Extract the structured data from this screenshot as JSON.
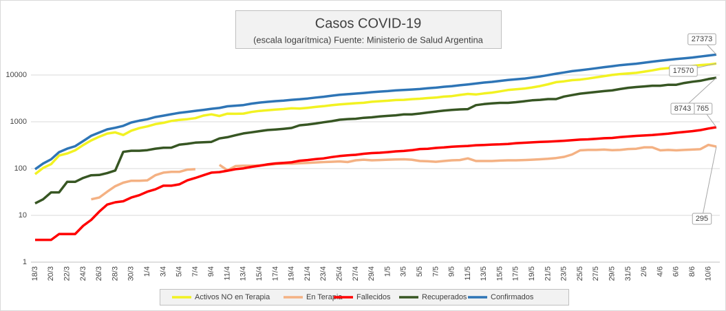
{
  "chart_data": {
    "type": "line",
    "title": "Casos COVID-19",
    "subtitle": "(escala logarítmica) Fuente: Ministerio de Salud Argentina",
    "log_scale": true,
    "grid": true,
    "legend": "bottom",
    "ylim": [
      1,
      100000
    ],
    "yticks": [
      1,
      10,
      100,
      1000,
      10000
    ],
    "categories": [
      "18/3",
      null,
      "20/3",
      null,
      "22/3",
      null,
      "24/3",
      null,
      "26/3",
      null,
      "28/3",
      null,
      "30/3",
      null,
      "1/4",
      null,
      "3/4",
      null,
      "5/4",
      null,
      "7/4",
      null,
      "9/4",
      null,
      "11/4",
      null,
      "13/4",
      null,
      "15/4",
      null,
      "17/4",
      null,
      "19/4",
      null,
      "21/4",
      null,
      "23/4",
      null,
      "25/4",
      null,
      "27/4",
      null,
      "29/4",
      null,
      "1/5",
      null,
      "3/5",
      null,
      "5/5",
      null,
      "7/5",
      null,
      "9/5",
      null,
      "11/5",
      null,
      "13/5",
      null,
      "15/5",
      null,
      "17/5",
      null,
      "19/5",
      null,
      "21/5",
      null,
      "23/5",
      null,
      "25/5",
      null,
      "27/5",
      null,
      "29/5",
      null,
      "31/5",
      null,
      "2/6",
      null,
      "4/6",
      null,
      "6/6",
      null,
      "8/6",
      null,
      "10/6",
      null
    ],
    "series": [
      {
        "name": "Activos NO en Terapia",
        "color": "#f2f222",
        "values": [
          76,
          103,
          124,
          190,
          210,
          245,
          318,
          400,
          480,
          561,
          593,
          522,
          647,
          732,
          797,
          891,
          949,
          1043,
          1098,
          1139,
          1197,
          1358,
          1440,
          1331,
          1492,
          1483,
          1496,
          1623,
          1707,
          1760,
          1819,
          1871,
          1941,
          1914,
          1988,
          2075,
          2156,
          2261,
          2346,
          2422,
          2494,
          2547,
          2676,
          2757,
          2815,
          2915,
          2945,
          3043,
          3113,
          3220,
          3296,
          3455,
          3541,
          3745,
          3946,
          3837,
          4030,
          4197,
          4468,
          4785,
          4944,
          5122,
          5419,
          5804,
          6336,
          7035,
          7319,
          7750,
          7968,
          8389,
          8901,
          9476,
          10031,
          10489,
          10782,
          11124,
          11815,
          12567,
          13517,
          14051,
          15012,
          15191,
          15567,
          16303,
          16750,
          17570
        ]
      },
      {
        "name": "En Terapia",
        "color": "#f4b183",
        "values": [
          null,
          null,
          null,
          null,
          null,
          null,
          null,
          22,
          24,
          32,
          42,
          50,
          55,
          55,
          56,
          72,
          82,
          85,
          85,
          95,
          97,
          null,
          null,
          120,
          92,
          113,
          115,
          115,
          117,
          120,
          125,
          127,
          127,
          130,
          132,
          135,
          138,
          140,
          142,
          138,
          150,
          155,
          150,
          152,
          155,
          157,
          158,
          155,
          145,
          143,
          140,
          145,
          150,
          152,
          165,
          145,
          145,
          145,
          148,
          150,
          150,
          152,
          155,
          158,
          162,
          168,
          178,
          200,
          245,
          250,
          250,
          255,
          248,
          250,
          262,
          265,
          285,
          285,
          245,
          250,
          245,
          250,
          255,
          260,
          320,
          295
        ]
      },
      {
        "name": "Fallecidos",
        "color": "#ff0000",
        "values": [
          3,
          3,
          3,
          4,
          4,
          4,
          6,
          8,
          12,
          17,
          19,
          20,
          24,
          27,
          32,
          36,
          43,
          43,
          46,
          56,
          63,
          72,
          82,
          84,
          90,
          97,
          101,
          109,
          115,
          123,
          129,
          132,
          136,
          147,
          152,
          159,
          165,
          176,
          185,
          192,
          197,
          207,
          214,
          218,
          225,
          233,
          238,
          247,
          262,
          265,
          276,
          283,
          293,
          300,
          305,
          315,
          319,
          326,
          329,
          336,
          349,
          356,
          363,
          371,
          376,
          384,
          393,
          403,
          416,
          422,
          433,
          445,
          452,
          471,
          484,
          500,
          510,
          520,
          539,
          556,
          583,
          608,
          632,
          664,
          717,
          765
        ]
      },
      {
        "name": "Recuperados",
        "color": "#375623",
        "values": [
          18,
          22,
          31,
          31,
          52,
          52,
          63,
          72,
          73,
          80,
          91,
          228,
          240,
          240,
          248,
          266,
          279,
          280,
          325,
          338,
          358,
          365,
          372,
          440,
          468,
          515,
          565,
          596,
          632,
          666,
          685,
          709,
          737,
          840,
          872,
          919,
          976,
          1030,
          1107,
          1140,
          1162,
          1218,
          1245,
          1301,
          1337,
          1376,
          1442,
          1442,
          1500,
          1580,
          1659,
          1728,
          1792,
          1837,
          1862,
          2266,
          2385,
          2466,
          2534,
          2534,
          2625,
          2741,
          2872,
          2950,
          3057,
          3062,
          3463,
          3723,
          3999,
          4167,
          4349,
          4526,
          4688,
          5004,
          5323,
          5526,
          5709,
          5896,
          5896,
          6180,
          6180,
          6745,
          7166,
          7534,
          8200,
          8743
        ]
      },
      {
        "name": "Confirmados",
        "color": "#2e75b6",
        "values": [
          97,
          128,
          158,
          225,
          266,
          301,
          387,
          502,
          589,
          690,
          745,
          820,
          966,
          1054,
          1133,
          1265,
          1353,
          1451,
          1554,
          1628,
          1715,
          1795,
          1894,
          1975,
          2142,
          2208,
          2277,
          2443,
          2571,
          2669,
          2758,
          2839,
          2941,
          3031,
          3144,
          3288,
          3435,
          3607,
          3780,
          3892,
          4003,
          4127,
          4285,
          4428,
          4532,
          4681,
          4783,
          4887,
          5020,
          5208,
          5371,
          5611,
          5776,
          6034,
          6278,
          6563,
          6879,
          7134,
          7479,
          7805,
          8068,
          8371,
          8809,
          9283,
          9931,
          10649,
          11353,
          12076,
          12628,
          13228,
          13933,
          14702,
          15419,
          16214,
          16851,
          17415,
          18319,
          19268,
          20197,
          21037,
          22020,
          22794,
          23620,
          24761,
          25987,
          27373
        ]
      }
    ]
  }
}
